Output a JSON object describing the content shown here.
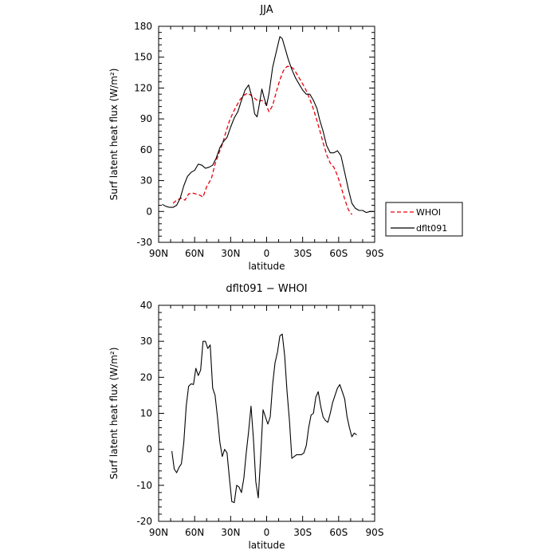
{
  "chart_data": [
    {
      "type": "line",
      "title": "JJA",
      "xlabel": "latitude",
      "ylabel": "Surf latent heat flux (W/m²)",
      "xlim": [
        90,
        -90
      ],
      "ylim": [
        -30,
        180
      ],
      "xticks": [
        90,
        60,
        30,
        0,
        -30,
        -60,
        -90
      ],
      "xtick_labels": [
        "90N",
        "60N",
        "30N",
        "0",
        "30S",
        "60S",
        "90S"
      ],
      "yticks": [
        -30,
        0,
        30,
        60,
        90,
        120,
        150,
        180
      ],
      "ytick_labels": [
        "-30",
        "0",
        "30",
        "60",
        "90",
        "120",
        "150",
        "180"
      ],
      "legend_position": "right",
      "series": [
        {
          "name": "WHOI",
          "style": "dashed",
          "color": "#e8000b",
          "points": [
            [
              78,
              8
            ],
            [
              75,
              11
            ],
            [
              71,
              13
            ],
            [
              68,
              11
            ],
            [
              65,
              17
            ],
            [
              62,
              18
            ],
            [
              59,
              17
            ],
            [
              56,
              16
            ],
            [
              53,
              14
            ],
            [
              50,
              24
            ],
            [
              46,
              32
            ],
            [
              43,
              46
            ],
            [
              40,
              56
            ],
            [
              37,
              65
            ],
            [
              34,
              77
            ],
            [
              31,
              88
            ],
            [
              28,
              96
            ],
            [
              25,
              103
            ],
            [
              22,
              109
            ],
            [
              19,
              113
            ],
            [
              16,
              115
            ],
            [
              13,
              113
            ],
            [
              10,
              110
            ],
            [
              7,
              107
            ],
            [
              4,
              108
            ],
            [
              1,
              105
            ],
            [
              -2,
              97
            ],
            [
              -5,
              103
            ],
            [
              -8,
              116
            ],
            [
              -11,
              128
            ],
            [
              -14,
              137
            ],
            [
              -17,
              141
            ],
            [
              -20,
              141
            ],
            [
              -23,
              138
            ],
            [
              -26,
              132
            ],
            [
              -29,
              126
            ],
            [
              -32,
              120
            ],
            [
              -35,
              112
            ],
            [
              -38,
              103
            ],
            [
              -41,
              92
            ],
            [
              -44,
              80
            ],
            [
              -47,
              67
            ],
            [
              -50,
              55
            ],
            [
              -53,
              47
            ],
            [
              -56,
              43
            ],
            [
              -59,
              35
            ],
            [
              -62,
              24
            ],
            [
              -65,
              12
            ],
            [
              -68,
              2
            ],
            [
              -71,
              -3
            ]
          ]
        },
        {
          "name": "dflt091",
          "style": "solid",
          "color": "#000000",
          "points": [
            [
              87,
              7
            ],
            [
              84,
              5
            ],
            [
              81,
              4
            ],
            [
              78,
              4
            ],
            [
              75,
              6
            ],
            [
              72,
              13
            ],
            [
              69,
              25
            ],
            [
              66,
              34
            ],
            [
              63,
              38
            ],
            [
              60,
              40
            ],
            [
              57,
              46
            ],
            [
              54,
              45
            ],
            [
              51,
              42
            ],
            [
              48,
              43
            ],
            [
              45,
              45
            ],
            [
              42,
              52
            ],
            [
              39,
              62
            ],
            [
              36,
              68
            ],
            [
              33,
              72
            ],
            [
              30,
              82
            ],
            [
              27,
              91
            ],
            [
              24,
              97
            ],
            [
              21,
              108
            ],
            [
              18,
              118
            ],
            [
              15,
              123
            ],
            [
              12,
              110
            ],
            [
              10,
              95
            ],
            [
              8,
              92
            ],
            [
              6,
              105
            ],
            [
              4,
              119
            ],
            [
              2,
              110
            ],
            [
              0,
              103
            ],
            [
              -2,
              115
            ],
            [
              -5,
              140
            ],
            [
              -8,
              155
            ],
            [
              -11,
              170
            ],
            [
              -13,
              168
            ],
            [
              -15,
              160
            ],
            [
              -18,
              148
            ],
            [
              -21,
              138
            ],
            [
              -24,
              130
            ],
            [
              -27,
              124
            ],
            [
              -30,
              118
            ],
            [
              -33,
              114
            ],
            [
              -36,
              114
            ],
            [
              -39,
              108
            ],
            [
              -42,
              100
            ],
            [
              -44,
              90
            ],
            [
              -47,
              78
            ],
            [
              -50,
              64
            ],
            [
              -53,
              57
            ],
            [
              -56,
              57
            ],
            [
              -59,
              59
            ],
            [
              -62,
              54
            ],
            [
              -65,
              38
            ],
            [
              -68,
              22
            ],
            [
              -71,
              8
            ],
            [
              -74,
              3
            ],
            [
              -77,
              1
            ],
            [
              -80,
              1
            ],
            [
              -83,
              -1
            ],
            [
              -86,
              0
            ],
            [
              -89,
              0
            ]
          ]
        }
      ]
    },
    {
      "type": "line",
      "title": "dflt091 − WHOI",
      "xlabel": "latitude",
      "ylabel": "Surf latent heat flux (W/m²)",
      "xlim": [
        90,
        -90
      ],
      "ylim": [
        -20,
        40
      ],
      "xticks": [
        90,
        60,
        30,
        0,
        -30,
        -60,
        -90
      ],
      "xtick_labels": [
        "90N",
        "60N",
        "30N",
        "0",
        "30S",
        "60S",
        "90S"
      ],
      "yticks": [
        -20,
        -10,
        0,
        10,
        20,
        30,
        40
      ],
      "ytick_labels": [
        "-20",
        "-10",
        "0",
        "10",
        "20",
        "30",
        "40"
      ],
      "series": [
        {
          "style": "solid",
          "color": "#000000",
          "points": [
            [
              79,
              -0.5
            ],
            [
              77,
              -5.5
            ],
            [
              75,
              -6.5
            ],
            [
              73,
              -5
            ],
            [
              71,
              -4
            ],
            [
              69,
              2
            ],
            [
              67,
              12
            ],
            [
              65,
              17.5
            ],
            [
              63,
              18.2
            ],
            [
              61,
              18
            ],
            [
              59,
              22.5
            ],
            [
              57,
              20.5
            ],
            [
              55,
              22
            ],
            [
              53,
              30
            ],
            [
              51,
              30
            ],
            [
              49,
              28
            ],
            [
              47,
              29
            ],
            [
              45,
              17
            ],
            [
              43,
              15
            ],
            [
              41,
              9
            ],
            [
              39,
              2
            ],
            [
              37,
              -2
            ],
            [
              35,
              0
            ],
            [
              33,
              -1
            ],
            [
              31,
              -8
            ],
            [
              29,
              -14.5
            ],
            [
              27,
              -14.8
            ],
            [
              25,
              -10
            ],
            [
              23,
              -10.5
            ],
            [
              21,
              -12
            ],
            [
              19,
              -8
            ],
            [
              17,
              -1
            ],
            [
              15,
              5
            ],
            [
              13,
              12
            ],
            [
              11,
              3
            ],
            [
              9,
              -9
            ],
            [
              7,
              -13.5
            ],
            [
              5,
              -2
            ],
            [
              3,
              11
            ],
            [
              1,
              9
            ],
            [
              -1,
              7
            ],
            [
              -3,
              9
            ],
            [
              -5,
              18
            ],
            [
              -7,
              24
            ],
            [
              -9,
              27
            ],
            [
              -11,
              31.5
            ],
            [
              -13,
              32
            ],
            [
              -15,
              26
            ],
            [
              -17,
              16
            ],
            [
              -19,
              8
            ],
            [
              -21,
              -2.5
            ],
            [
              -23,
              -2
            ],
            [
              -25,
              -1.5
            ],
            [
              -27,
              -1.5
            ],
            [
              -29,
              -1.5
            ],
            [
              -31,
              -1
            ],
            [
              -33,
              1
            ],
            [
              -35,
              6
            ],
            [
              -37,
              9.5
            ],
            [
              -39,
              10
            ],
            [
              -41,
              14.5
            ],
            [
              -43,
              16
            ],
            [
              -45,
              12
            ],
            [
              -47,
              9
            ],
            [
              -49,
              8
            ],
            [
              -51,
              7.5
            ],
            [
              -53,
              10
            ],
            [
              -55,
              13
            ],
            [
              -57,
              15
            ],
            [
              -59,
              17
            ],
            [
              -61,
              18
            ],
            [
              -63,
              16
            ],
            [
              -65,
              14
            ],
            [
              -67,
              9
            ],
            [
              -69,
              6
            ],
            [
              -71,
              3.5
            ],
            [
              -73,
              4.5
            ],
            [
              -75,
              4
            ]
          ]
        }
      ]
    }
  ]
}
